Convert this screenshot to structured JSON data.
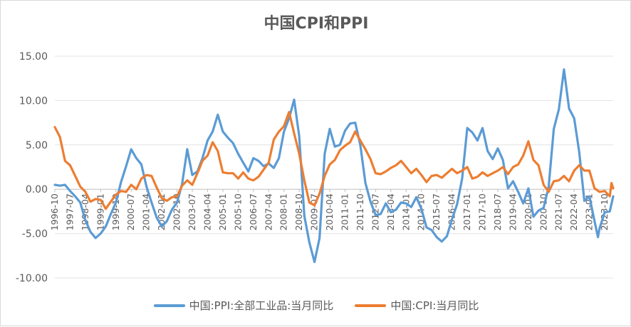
{
  "chart_data": {
    "type": "line",
    "title": "中国CPI和PPI",
    "xlabel": "",
    "ylabel": "",
    "ylim": [
      -10,
      15
    ],
    "yticks": [
      "15.00",
      "10.00",
      "5.00",
      "0.00",
      "-5.00",
      "-10.00"
    ],
    "x_start": "1996-10",
    "x_end": "2024-03",
    "x_tick_labels": [
      "1996-10",
      "1997-07",
      "1998-04",
      "1999-01",
      "1999-10",
      "2000-07",
      "2001-04",
      "2002-01",
      "2002-10",
      "2003-07",
      "2004-04",
      "2005-01",
      "2005-10",
      "2006-07",
      "2007-04",
      "2008-01",
      "2008-10",
      "2009-07",
      "2010-04",
      "2011-01",
      "2011-10",
      "2012-07",
      "2013-04",
      "2014-01",
      "2014-10",
      "2015-07",
      "2016-04",
      "2017-01",
      "2017-10",
      "2018-07",
      "2019-04",
      "2020-01",
      "2020-10",
      "2021-07",
      "2022-04",
      "2023-01",
      "2023-10"
    ],
    "grid": true,
    "legend_position": "bottom",
    "series": [
      {
        "name": "中国:PPI:全部工业品:当月同比",
        "color": "#5b9bd5",
        "points": [
          [
            "1996-10",
            0.5
          ],
          [
            "1997-01",
            0.4
          ],
          [
            "1997-04",
            0.5
          ],
          [
            "1997-07",
            -0.2
          ],
          [
            "1997-10",
            -0.8
          ],
          [
            "1998-01",
            -1.5
          ],
          [
            "1998-04",
            -3.5
          ],
          [
            "1998-07",
            -4.8
          ],
          [
            "1998-10",
            -5.5
          ],
          [
            "1999-01",
            -5.0
          ],
          [
            "1999-04",
            -4.2
          ],
          [
            "1999-07",
            -2.8
          ],
          [
            "1999-10",
            -1.5
          ],
          [
            "2000-01",
            0.8
          ],
          [
            "2000-04",
            2.6
          ],
          [
            "2000-07",
            4.5
          ],
          [
            "2000-10",
            3.5
          ],
          [
            "2001-01",
            2.8
          ],
          [
            "2001-04",
            0.3
          ],
          [
            "2001-07",
            -1.5
          ],
          [
            "2001-10",
            -3.2
          ],
          [
            "2002-01",
            -4.2
          ],
          [
            "2002-04",
            -3.6
          ],
          [
            "2002-07",
            -2.3
          ],
          [
            "2002-10",
            -1.5
          ],
          [
            "2003-01",
            0.6
          ],
          [
            "2003-04",
            4.5
          ],
          [
            "2003-07",
            1.6
          ],
          [
            "2003-10",
            2.0
          ],
          [
            "2004-01",
            3.5
          ],
          [
            "2004-04",
            5.5
          ],
          [
            "2004-07",
            6.5
          ],
          [
            "2004-10",
            8.4
          ],
          [
            "2005-01",
            6.5
          ],
          [
            "2005-04",
            5.8
          ],
          [
            "2005-07",
            5.2
          ],
          [
            "2005-10",
            4.0
          ],
          [
            "2006-01",
            3.0
          ],
          [
            "2006-04",
            2.0
          ],
          [
            "2006-07",
            3.5
          ],
          [
            "2006-10",
            3.2
          ],
          [
            "2007-01",
            2.6
          ],
          [
            "2007-04",
            2.9
          ],
          [
            "2007-07",
            2.4
          ],
          [
            "2007-10",
            3.5
          ],
          [
            "2008-01",
            6.5
          ],
          [
            "2008-04",
            8.0
          ],
          [
            "2008-07",
            10.1
          ],
          [
            "2008-10",
            6.0
          ],
          [
            "2009-01",
            -3.0
          ],
          [
            "2009-04",
            -6.0
          ],
          [
            "2009-07",
            -8.2
          ],
          [
            "2009-10",
            -5.5
          ],
          [
            "2010-01",
            4.0
          ],
          [
            "2010-04",
            6.8
          ],
          [
            "2010-07",
            4.8
          ],
          [
            "2010-10",
            5.0
          ],
          [
            "2011-01",
            6.6
          ],
          [
            "2011-04",
            7.4
          ],
          [
            "2011-07",
            7.5
          ],
          [
            "2011-10",
            5.0
          ],
          [
            "2012-01",
            0.7
          ],
          [
            "2012-04",
            -1.4
          ],
          [
            "2012-07",
            -2.9
          ],
          [
            "2012-10",
            -2.8
          ],
          [
            "2013-01",
            -1.6
          ],
          [
            "2013-04",
            -2.6
          ],
          [
            "2013-07",
            -2.3
          ],
          [
            "2013-10",
            -1.5
          ],
          [
            "2014-01",
            -1.6
          ],
          [
            "2014-04",
            -2.0
          ],
          [
            "2014-07",
            -0.9
          ],
          [
            "2014-10",
            -2.2
          ],
          [
            "2015-01",
            -4.3
          ],
          [
            "2015-04",
            -4.6
          ],
          [
            "2015-07",
            -5.4
          ],
          [
            "2015-10",
            -5.9
          ],
          [
            "2016-01",
            -5.3
          ],
          [
            "2016-04",
            -3.4
          ],
          [
            "2016-07",
            -1.7
          ],
          [
            "2016-10",
            1.2
          ],
          [
            "2017-01",
            6.9
          ],
          [
            "2017-04",
            6.4
          ],
          [
            "2017-07",
            5.5
          ],
          [
            "2017-10",
            6.9
          ],
          [
            "2018-01",
            4.3
          ],
          [
            "2018-04",
            3.4
          ],
          [
            "2018-07",
            4.6
          ],
          [
            "2018-10",
            3.3
          ],
          [
            "2019-01",
            0.1
          ],
          [
            "2019-04",
            0.9
          ],
          [
            "2019-07",
            -0.3
          ],
          [
            "2019-10",
            -1.6
          ],
          [
            "2020-01",
            0.1
          ],
          [
            "2020-04",
            -3.1
          ],
          [
            "2020-07",
            -2.4
          ],
          [
            "2020-10",
            -2.1
          ],
          [
            "2021-01",
            0.3
          ],
          [
            "2021-04",
            6.8
          ],
          [
            "2021-07",
            9.0
          ],
          [
            "2021-10",
            13.5
          ],
          [
            "2022-01",
            9.1
          ],
          [
            "2022-04",
            8.0
          ],
          [
            "2022-07",
            4.2
          ],
          [
            "2022-10",
            -1.3
          ],
          [
            "2023-01",
            -0.8
          ],
          [
            "2023-04",
            -3.6
          ],
          [
            "2023-06",
            -5.4
          ],
          [
            "2023-07",
            -4.4
          ],
          [
            "2023-10",
            -2.6
          ],
          [
            "2024-01",
            -2.5
          ],
          [
            "2024-03",
            -0.8
          ]
        ]
      },
      {
        "name": "中国:CPI:当月同比",
        "color": "#ed7d31",
        "points": [
          [
            "1996-10",
            7.0
          ],
          [
            "1997-01",
            5.9
          ],
          [
            "1997-04",
            3.2
          ],
          [
            "1997-07",
            2.7
          ],
          [
            "1997-10",
            1.5
          ],
          [
            "1998-01",
            0.3
          ],
          [
            "1998-04",
            -0.3
          ],
          [
            "1998-07",
            -1.4
          ],
          [
            "1998-10",
            -1.1
          ],
          [
            "1999-01",
            -1.2
          ],
          [
            "1999-04",
            -2.2
          ],
          [
            "1999-07",
            -1.4
          ],
          [
            "1999-10",
            -0.6
          ],
          [
            "2000-01",
            -0.2
          ],
          [
            "2000-04",
            -0.3
          ],
          [
            "2000-07",
            0.5
          ],
          [
            "2000-10",
            0.0
          ],
          [
            "2001-01",
            1.2
          ],
          [
            "2001-04",
            1.6
          ],
          [
            "2001-07",
            1.5
          ],
          [
            "2001-10",
            0.2
          ],
          [
            "2002-01",
            -1.0
          ],
          [
            "2002-04",
            -1.3
          ],
          [
            "2002-07",
            -0.9
          ],
          [
            "2002-10",
            -0.8
          ],
          [
            "2003-01",
            0.4
          ],
          [
            "2003-04",
            1.0
          ],
          [
            "2003-07",
            0.5
          ],
          [
            "2003-10",
            1.8
          ],
          [
            "2004-01",
            3.2
          ],
          [
            "2004-04",
            3.8
          ],
          [
            "2004-07",
            5.3
          ],
          [
            "2004-10",
            4.3
          ],
          [
            "2005-01",
            1.9
          ],
          [
            "2005-04",
            1.8
          ],
          [
            "2005-07",
            1.8
          ],
          [
            "2005-10",
            1.2
          ],
          [
            "2006-01",
            1.9
          ],
          [
            "2006-04",
            1.2
          ],
          [
            "2006-07",
            1.0
          ],
          [
            "2006-10",
            1.4
          ],
          [
            "2007-01",
            2.2
          ],
          [
            "2007-04",
            3.0
          ],
          [
            "2007-07",
            5.6
          ],
          [
            "2007-10",
            6.5
          ],
          [
            "2008-01",
            7.1
          ],
          [
            "2008-04",
            8.7
          ],
          [
            "2008-07",
            6.3
          ],
          [
            "2008-10",
            4.0
          ],
          [
            "2009-01",
            1.0
          ],
          [
            "2009-04",
            -1.5
          ],
          [
            "2009-07",
            -1.8
          ],
          [
            "2009-10",
            -0.5
          ],
          [
            "2010-01",
            1.5
          ],
          [
            "2010-04",
            2.8
          ],
          [
            "2010-07",
            3.3
          ],
          [
            "2010-10",
            4.4
          ],
          [
            "2011-01",
            4.9
          ],
          [
            "2011-04",
            5.3
          ],
          [
            "2011-07",
            6.5
          ],
          [
            "2011-10",
            5.5
          ],
          [
            "2012-01",
            4.5
          ],
          [
            "2012-04",
            3.4
          ],
          [
            "2012-07",
            1.8
          ],
          [
            "2012-10",
            1.7
          ],
          [
            "2013-01",
            2.0
          ],
          [
            "2013-04",
            2.4
          ],
          [
            "2013-07",
            2.7
          ],
          [
            "2013-10",
            3.2
          ],
          [
            "2014-01",
            2.5
          ],
          [
            "2014-04",
            1.8
          ],
          [
            "2014-07",
            2.3
          ],
          [
            "2014-10",
            1.6
          ],
          [
            "2015-01",
            0.8
          ],
          [
            "2015-04",
            1.5
          ],
          [
            "2015-07",
            1.6
          ],
          [
            "2015-10",
            1.3
          ],
          [
            "2016-01",
            1.8
          ],
          [
            "2016-04",
            2.3
          ],
          [
            "2016-07",
            1.8
          ],
          [
            "2016-10",
            2.1
          ],
          [
            "2017-01",
            2.5
          ],
          [
            "2017-04",
            1.2
          ],
          [
            "2017-07",
            1.4
          ],
          [
            "2017-10",
            1.9
          ],
          [
            "2018-01",
            1.5
          ],
          [
            "2018-04",
            1.8
          ],
          [
            "2018-07",
            2.1
          ],
          [
            "2018-10",
            2.5
          ],
          [
            "2019-01",
            1.7
          ],
          [
            "2019-04",
            2.5
          ],
          [
            "2019-07",
            2.8
          ],
          [
            "2019-10",
            3.8
          ],
          [
            "2020-01",
            5.4
          ],
          [
            "2020-04",
            3.3
          ],
          [
            "2020-07",
            2.7
          ],
          [
            "2020-10",
            0.5
          ],
          [
            "2021-01",
            -0.3
          ],
          [
            "2021-04",
            0.9
          ],
          [
            "2021-07",
            1.0
          ],
          [
            "2021-10",
            1.5
          ],
          [
            "2022-01",
            0.9
          ],
          [
            "2022-04",
            2.1
          ],
          [
            "2022-07",
            2.7
          ],
          [
            "2022-10",
            2.1
          ],
          [
            "2023-01",
            2.1
          ],
          [
            "2023-04",
            0.1
          ],
          [
            "2023-07",
            -0.3
          ],
          [
            "2023-10",
            -0.2
          ],
          [
            "2024-01",
            -0.8
          ],
          [
            "2024-02",
            0.7
          ],
          [
            "2024-03",
            0.1
          ]
        ]
      }
    ]
  }
}
